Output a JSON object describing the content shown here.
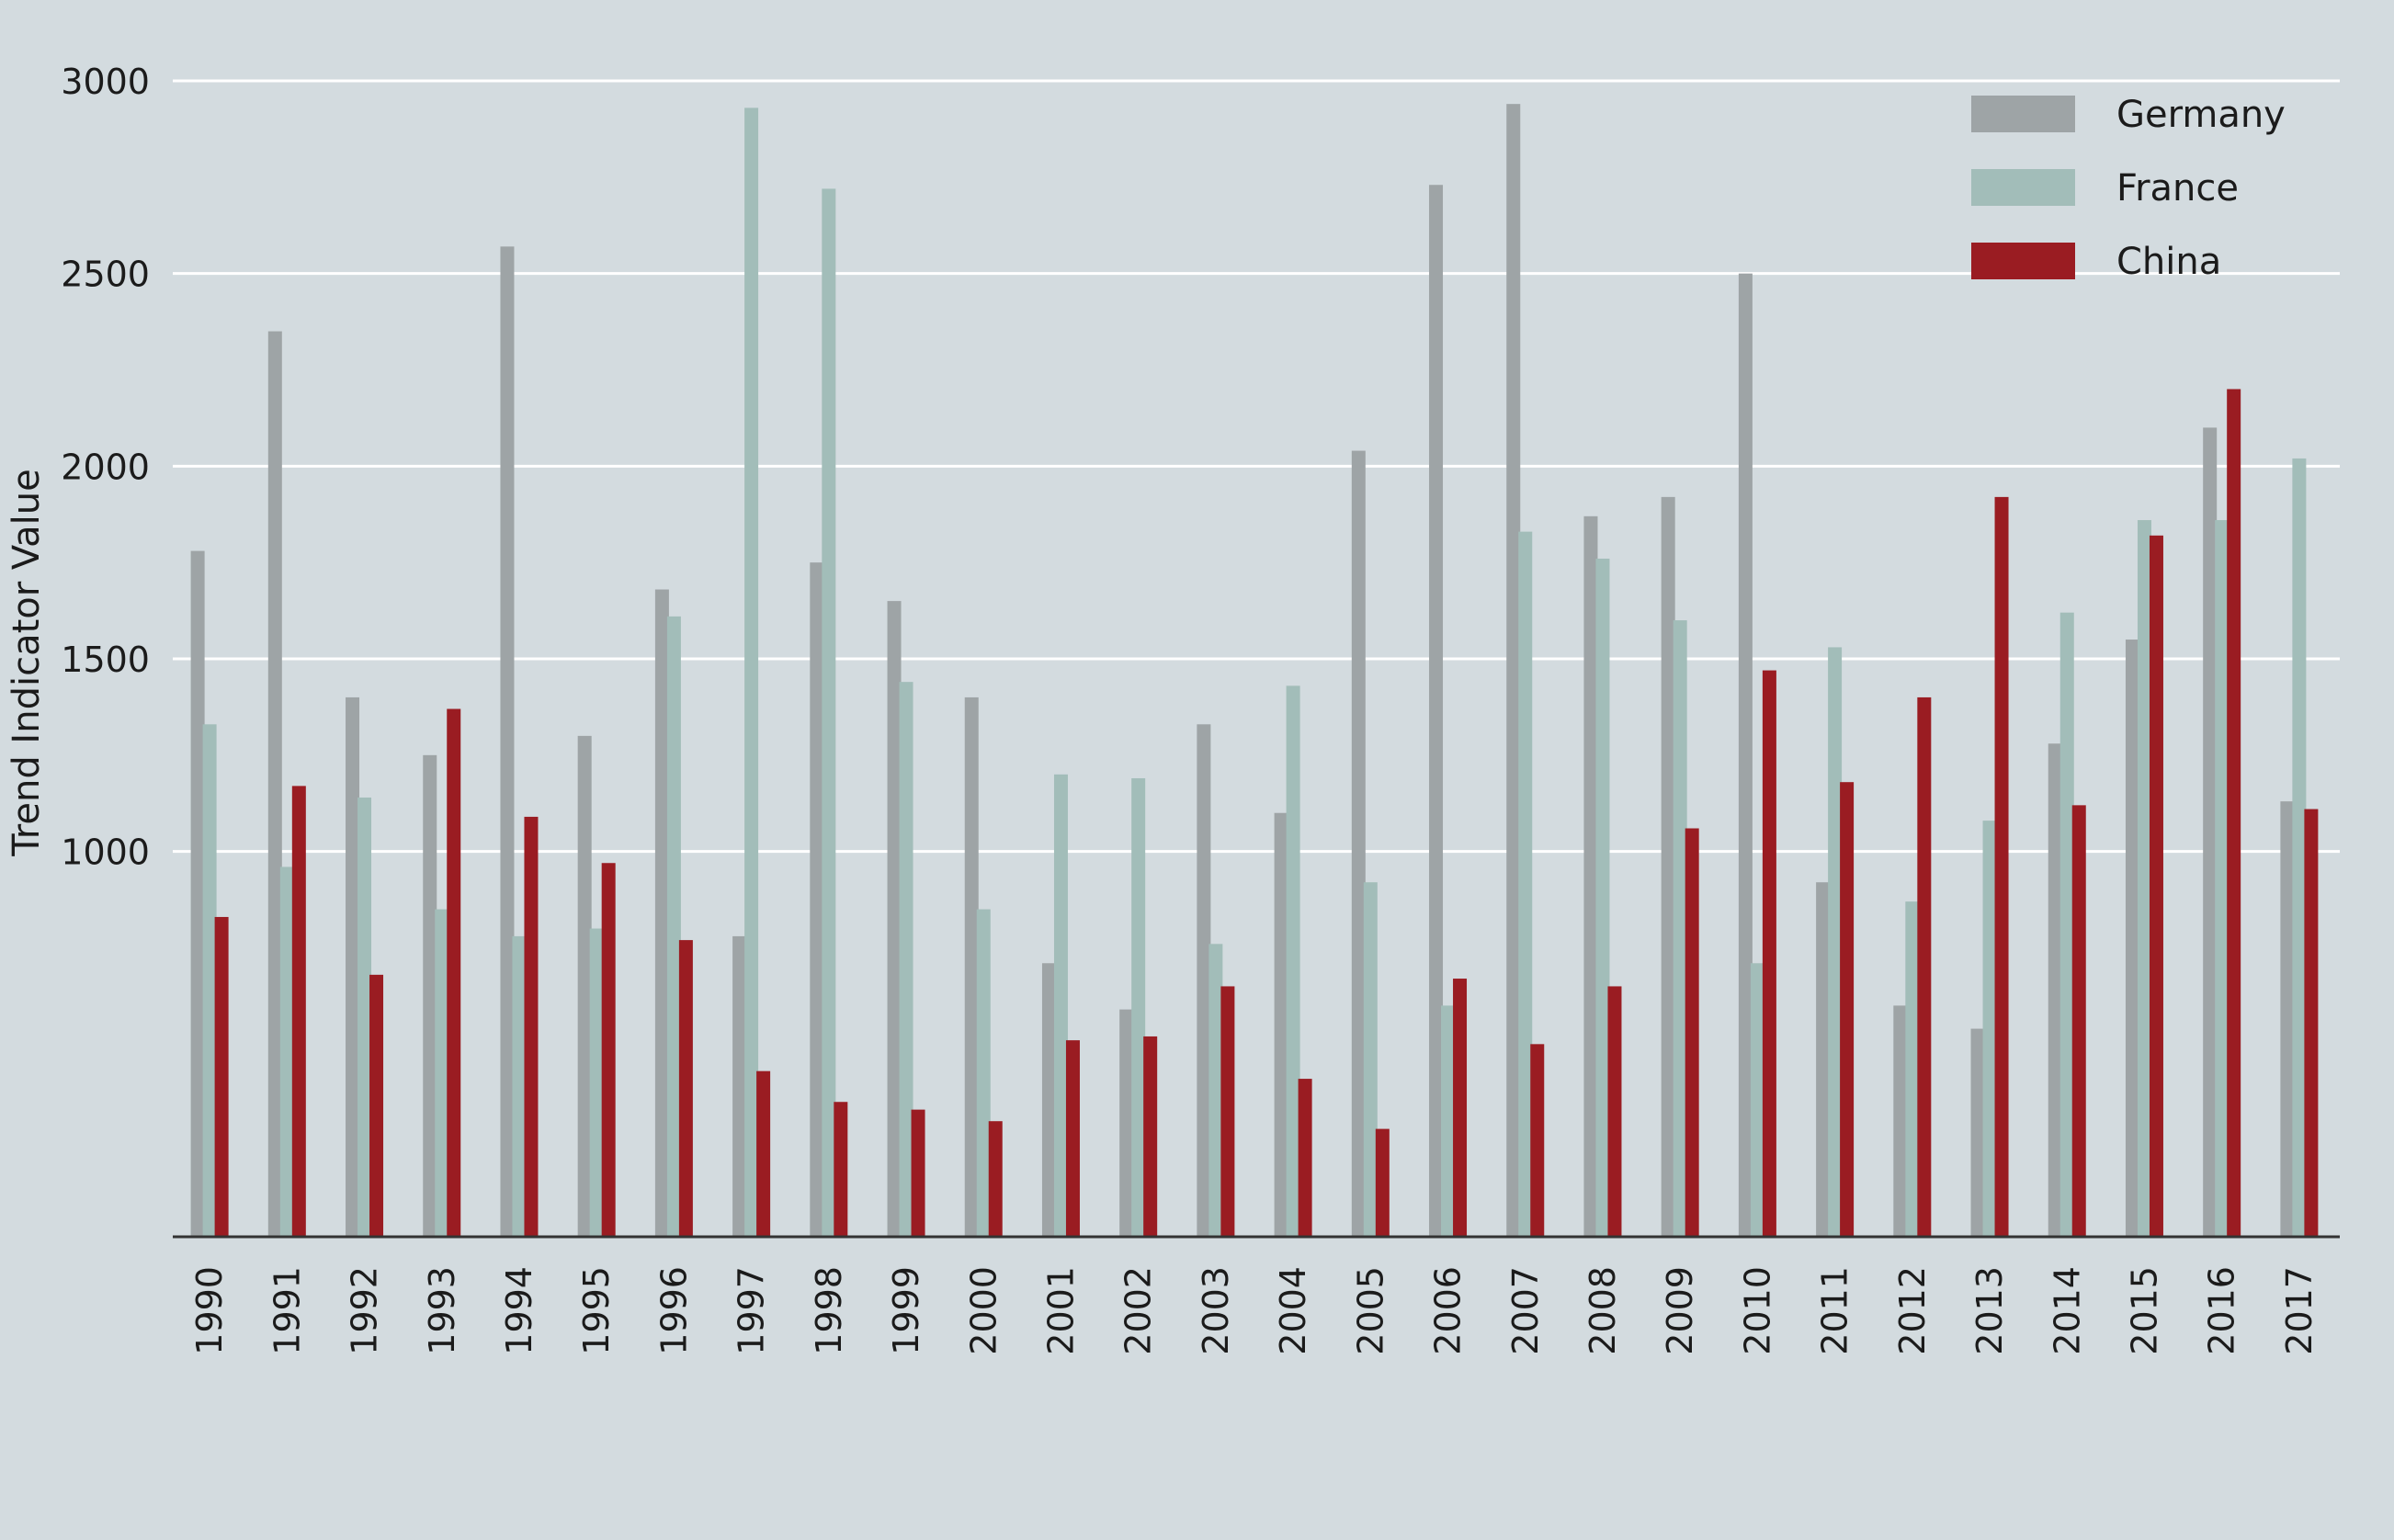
{
  "chart_data": {
    "type": "bar",
    "title": "",
    "xlabel": "",
    "ylabel": "Trend Indicator Value",
    "ylim": [
      0,
      3000
    ],
    "y_gridlines": [
      1000,
      1500,
      2000,
      2500,
      3000
    ],
    "y_tick_labels": [
      "1000",
      "1500",
      "2000",
      "2500",
      "3000"
    ],
    "grid": true,
    "legend_position": "top-right",
    "categories": [
      "1990",
      "1991",
      "1992",
      "1993",
      "1994",
      "1995",
      "1996",
      "1997",
      "1998",
      "1999",
      "2000",
      "2001",
      "2002",
      "2003",
      "2004",
      "2005",
      "2006",
      "2007",
      "2008",
      "2009",
      "2010",
      "2011",
      "2012",
      "2013",
      "2014",
      "2015",
      "2016",
      "2017"
    ],
    "series": [
      {
        "name": "Germany",
        "color": "#9ea4a6",
        "values": [
          1780,
          2350,
          1400,
          1250,
          2570,
          1300,
          1680,
          780,
          1750,
          1650,
          1400,
          710,
          590,
          1330,
          1100,
          2040,
          2730,
          2940,
          1870,
          1920,
          2500,
          920,
          600,
          540,
          1280,
          1550,
          2100,
          1130
        ]
      },
      {
        "name": "France",
        "color": "#a2bdb9",
        "values": [
          1330,
          960,
          1140,
          850,
          780,
          800,
          1610,
          2930,
          2720,
          1440,
          850,
          1200,
          1190,
          760,
          1430,
          920,
          600,
          1830,
          1760,
          1600,
          710,
          1530,
          870,
          1080,
          1620,
          1860,
          1860,
          2020
        ]
      },
      {
        "name": "China",
        "color": "#9a1c22",
        "values": [
          830,
          1170,
          680,
          1370,
          1090,
          970,
          770,
          430,
          350,
          330,
          300,
          510,
          520,
          650,
          410,
          280,
          670,
          500,
          650,
          1060,
          1470,
          1180,
          1400,
          1920,
          1120,
          1820,
          2200,
          1110
        ]
      }
    ]
  }
}
